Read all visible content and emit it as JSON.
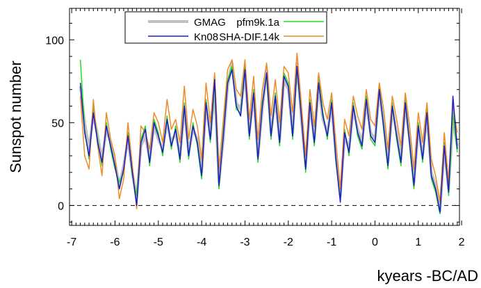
{
  "chart_data": {
    "type": "line",
    "xlabel": "kyears -BC/AD",
    "ylabel": "Sunspot number",
    "xlim": [
      -7.05,
      1.95
    ],
    "ylim": [
      -12,
      119
    ],
    "x_ticks": [
      -7,
      -6,
      -5,
      -4,
      -3,
      -2,
      -1,
      0,
      1,
      2
    ],
    "y_ticks": [
      0,
      50,
      100
    ],
    "zero_line": {
      "value": 0,
      "style": "dashed",
      "color": "#000000"
    },
    "legend": {
      "placement": "top-center",
      "entries": [
        {
          "name": "GMAG",
          "color": "#c0c0c0"
        },
        {
          "name": "pfm9k.1a",
          "color": "#22dd22"
        },
        {
          "name": "Kn08",
          "color": "#1c1cc8"
        },
        {
          "name": "SHA-DIF.14k",
          "color": "#f08a24"
        }
      ]
    },
    "x": [
      -6.8,
      -6.7,
      -6.6,
      -6.5,
      -6.4,
      -6.3,
      -6.2,
      -6.1,
      -6.0,
      -5.9,
      -5.8,
      -5.7,
      -5.6,
      -5.5,
      -5.4,
      -5.3,
      -5.2,
      -5.1,
      -5.0,
      -4.9,
      -4.8,
      -4.7,
      -4.6,
      -4.5,
      -4.4,
      -4.3,
      -4.2,
      -4.1,
      -4.0,
      -3.9,
      -3.8,
      -3.7,
      -3.6,
      -3.5,
      -3.4,
      -3.3,
      -3.2,
      -3.1,
      -3.0,
      -2.9,
      -2.8,
      -2.7,
      -2.6,
      -2.5,
      -2.4,
      -2.3,
      -2.2,
      -2.1,
      -2.0,
      -1.9,
      -1.8,
      -1.7,
      -1.6,
      -1.5,
      -1.4,
      -1.3,
      -1.2,
      -1.1,
      -1.0,
      -0.9,
      -0.8,
      -0.7,
      -0.6,
      -0.5,
      -0.4,
      -0.3,
      -0.2,
      -0.1,
      0.0,
      0.1,
      0.2,
      0.3,
      0.4,
      0.5,
      0.6,
      0.7,
      0.8,
      0.9,
      1.0,
      1.1,
      1.2,
      1.3,
      1.4,
      1.5,
      1.6,
      1.7,
      1.8,
      1.9
    ],
    "series": [
      {
        "name": "GMAG",
        "color": "#c0c0c0",
        "width": 4,
        "values": [
          72,
          50,
          34,
          55,
          42,
          28,
          46,
          38,
          26,
          12,
          24,
          40,
          20,
          4,
          36,
          42,
          28,
          48,
          40,
          34,
          50,
          38,
          44,
          30,
          58,
          32,
          46,
          40,
          20,
          60,
          42,
          70,
          14,
          40,
          72,
          86,
          62,
          58,
          80,
          44,
          66,
          30,
          58,
          82,
          44,
          64,
          40,
          76,
          70,
          44,
          86,
          52,
          24,
          60,
          40,
          72,
          52,
          44,
          60,
          30,
          6,
          42,
          34,
          58,
          46,
          38,
          62,
          44,
          40,
          68,
          50,
          26,
          58,
          44,
          28,
          60,
          40,
          14,
          46,
          30,
          54,
          20,
          12,
          -3,
          34,
          10,
          52,
          36
        ]
      },
      {
        "name": "pfm9k.1a",
        "color": "#22dd22",
        "width": 1.5,
        "values": [
          88,
          46,
          28,
          60,
          40,
          24,
          50,
          34,
          22,
          14,
          20,
          44,
          18,
          6,
          40,
          48,
          24,
          52,
          44,
          30,
          54,
          34,
          48,
          26,
          62,
          28,
          50,
          36,
          16,
          64,
          38,
          74,
          10,
          44,
          76,
          84,
          58,
          56,
          84,
          40,
          70,
          26,
          62,
          78,
          40,
          68,
          36,
          80,
          74,
          40,
          82,
          56,
          20,
          64,
          36,
          76,
          56,
          40,
          64,
          26,
          4,
          46,
          30,
          62,
          42,
          34,
          66,
          40,
          36,
          72,
          46,
          22,
          62,
          40,
          24,
          64,
          36,
          10,
          50,
          26,
          58,
          16,
          8,
          -5,
          38,
          6,
          56,
          32
        ]
      },
      {
        "name": "SHA-DIF.14k",
        "color": "#f08a24",
        "width": 1.5,
        "values": [
          66,
          30,
          22,
          64,
          36,
          18,
          56,
          40,
          30,
          4,
          16,
          50,
          24,
          -2,
          48,
          44,
          34,
          56,
          50,
          38,
          64,
          46,
          52,
          38,
          72,
          40,
          58,
          48,
          28,
          74,
          50,
          80,
          22,
          52,
          82,
          88,
          70,
          66,
          88,
          52,
          78,
          40,
          70,
          86,
          54,
          76,
          50,
          84,
          80,
          56,
          92,
          62,
          30,
          70,
          48,
          80,
          62,
          52,
          68,
          38,
          10,
          52,
          42,
          66,
          54,
          46,
          70,
          52,
          48,
          74,
          58,
          34,
          66,
          52,
          36,
          68,
          48,
          22,
          56,
          38,
          62,
          28,
          18,
          2,
          44,
          14,
          60,
          44
        ]
      },
      {
        "name": "Kn08",
        "color": "#1c1cc8",
        "width": 1.5,
        "values": [
          74,
          44,
          30,
          56,
          38,
          26,
          48,
          36,
          24,
          10,
          22,
          42,
          20,
          0,
          38,
          46,
          26,
          50,
          42,
          32,
          52,
          36,
          46,
          28,
          60,
          30,
          48,
          38,
          18,
          62,
          40,
          76,
          12,
          42,
          74,
          82,
          60,
          54,
          82,
          42,
          68,
          28,
          60,
          80,
          42,
          66,
          38,
          78,
          72,
          42,
          84,
          54,
          22,
          62,
          38,
          74,
          54,
          42,
          62,
          28,
          2,
          44,
          32,
          60,
          44,
          36,
          64,
          42,
          38,
          70,
          48,
          24,
          60,
          42,
          26,
          62,
          38,
          12,
          48,
          28,
          56,
          18,
          10,
          -4,
          36,
          8,
          66,
          34
        ]
      }
    ]
  }
}
